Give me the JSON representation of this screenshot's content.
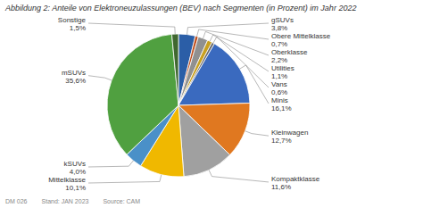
{
  "chart_data": {
    "type": "pie",
    "title": "Abbildung 2: Anteile von Elektroneuzulassungen (BEV) nach Segmenten (in Prozent) im Jahr 2022",
    "categories": [
      "gSUVs",
      "Obere Mittelklasse",
      "Oberklasse",
      "Utilities",
      "Vans",
      "Minis",
      "Kleinwagen",
      "Kompaktklasse",
      "Mittelklasse",
      "kSUVs",
      "mSUVs",
      "Sonstige"
    ],
    "values": [
      3.8,
      0.7,
      2.2,
      1.1,
      0.6,
      16.1,
      12.7,
      11.6,
      10.1,
      4.0,
      35.6,
      1.5
    ],
    "value_labels": [
      "3,8%",
      "0,7%",
      "2,2%",
      "1,1%",
      "0,6%",
      "16,1%",
      "12,7%",
      "11,6%",
      "10,1%",
      "4,0%",
      "35,6%",
      "1,5%"
    ],
    "colors": [
      "#2b5ea7",
      "#c0501f",
      "#909090",
      "#c8a020",
      "#6a6a6a",
      "#3a6abf",
      "#e07820",
      "#a0a0a0",
      "#f0b800",
      "#4a90c8",
      "#50a040",
      "#406830"
    ],
    "data_labels": true,
    "annotations": [
      "DM 026",
      "Stand: JAN 2023",
      "Source: CAM"
    ]
  }
}
